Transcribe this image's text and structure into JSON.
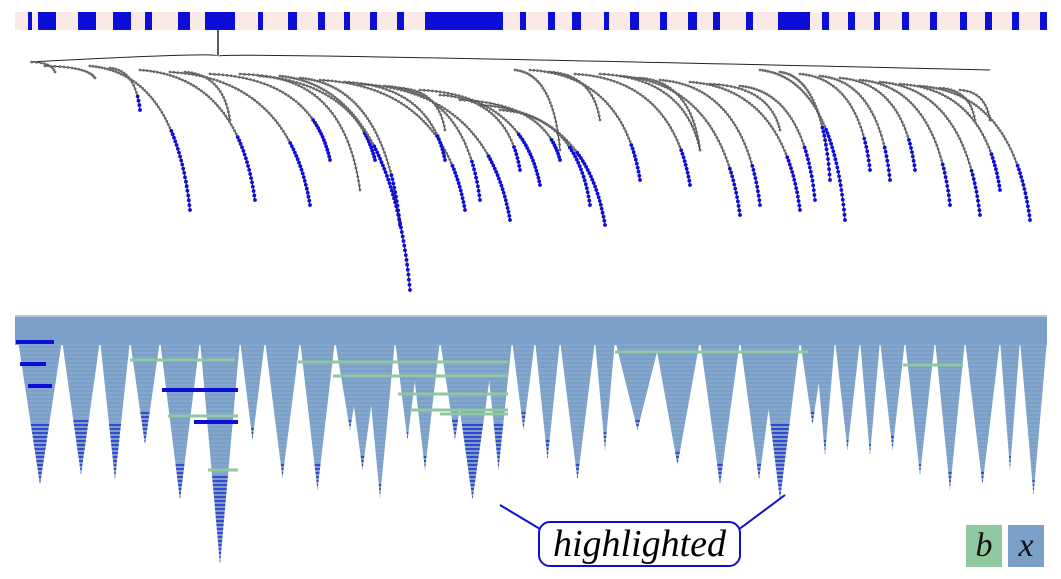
{
  "callout": {
    "label": "highlighted"
  },
  "legend": {
    "b": {
      "label": "b",
      "color": "#8fc89f"
    },
    "x": {
      "label": "x",
      "color": "#7aa0c8"
    }
  },
  "colors": {
    "highlight": "#0d0dd8",
    "tree_line": "#222222",
    "tree_node": "#6b6b6b",
    "overview_bg": "#fbe9e6",
    "icicle_fill": "#7aa0c8",
    "icicle_band": "#8fc89f",
    "callout_border": "#1010cc"
  }
}
